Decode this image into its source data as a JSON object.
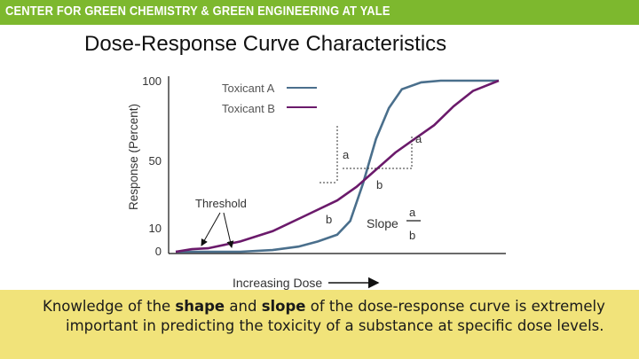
{
  "banner": {
    "text": "CENTER FOR GREEN CHEMISTRY & GREEN ENGINEERING AT YALE",
    "color": "#7db82e"
  },
  "slide": {
    "title": "Dose-Response Curve Characteristics"
  },
  "chart_data": {
    "type": "line",
    "title": "",
    "xlabel": "Increasing Dose",
    "ylabel": "Response (Percent)",
    "ylim": [
      0,
      100
    ],
    "y_ticks": [
      "100",
      "50",
      "10",
      "0"
    ],
    "x_range": [
      0,
      100
    ],
    "grid": false,
    "legend_position": "top-left",
    "series": [
      {
        "name": "Toxicant A",
        "color": "#4a6f8c",
        "x": [
          0,
          10,
          20,
          30,
          38,
          44,
          50,
          54,
          58,
          62,
          66,
          70,
          76,
          82,
          100
        ],
        "y": [
          0,
          0,
          0,
          1,
          3,
          6,
          10,
          18,
          40,
          66,
          84,
          95,
          99,
          100,
          100
        ]
      },
      {
        "name": "Toxicant B",
        "color": "#6b1a6b",
        "x": [
          0,
          5,
          10,
          20,
          30,
          40,
          50,
          56,
          62,
          68,
          74,
          80,
          86,
          92,
          100
        ],
        "y": [
          0,
          1.5,
          2,
          6,
          12,
          21,
          30,
          38,
          48,
          58,
          66,
          74,
          85,
          94,
          100
        ]
      }
    ],
    "annotations": {
      "threshold": "Threshold",
      "slope_label": "Slope",
      "rise": "a",
      "run": "b",
      "fraction_numerator": "a",
      "fraction_denominator": "b"
    }
  },
  "caption": {
    "part1": "Knowledge of the ",
    "shape": "shape",
    "part2": " and ",
    "slope": "slope",
    "part3": " of the dose-response curve is extremely",
    "line2": "important in predicting the toxicity of a substance at specific dose levels.",
    "background": "#f1e37a"
  }
}
